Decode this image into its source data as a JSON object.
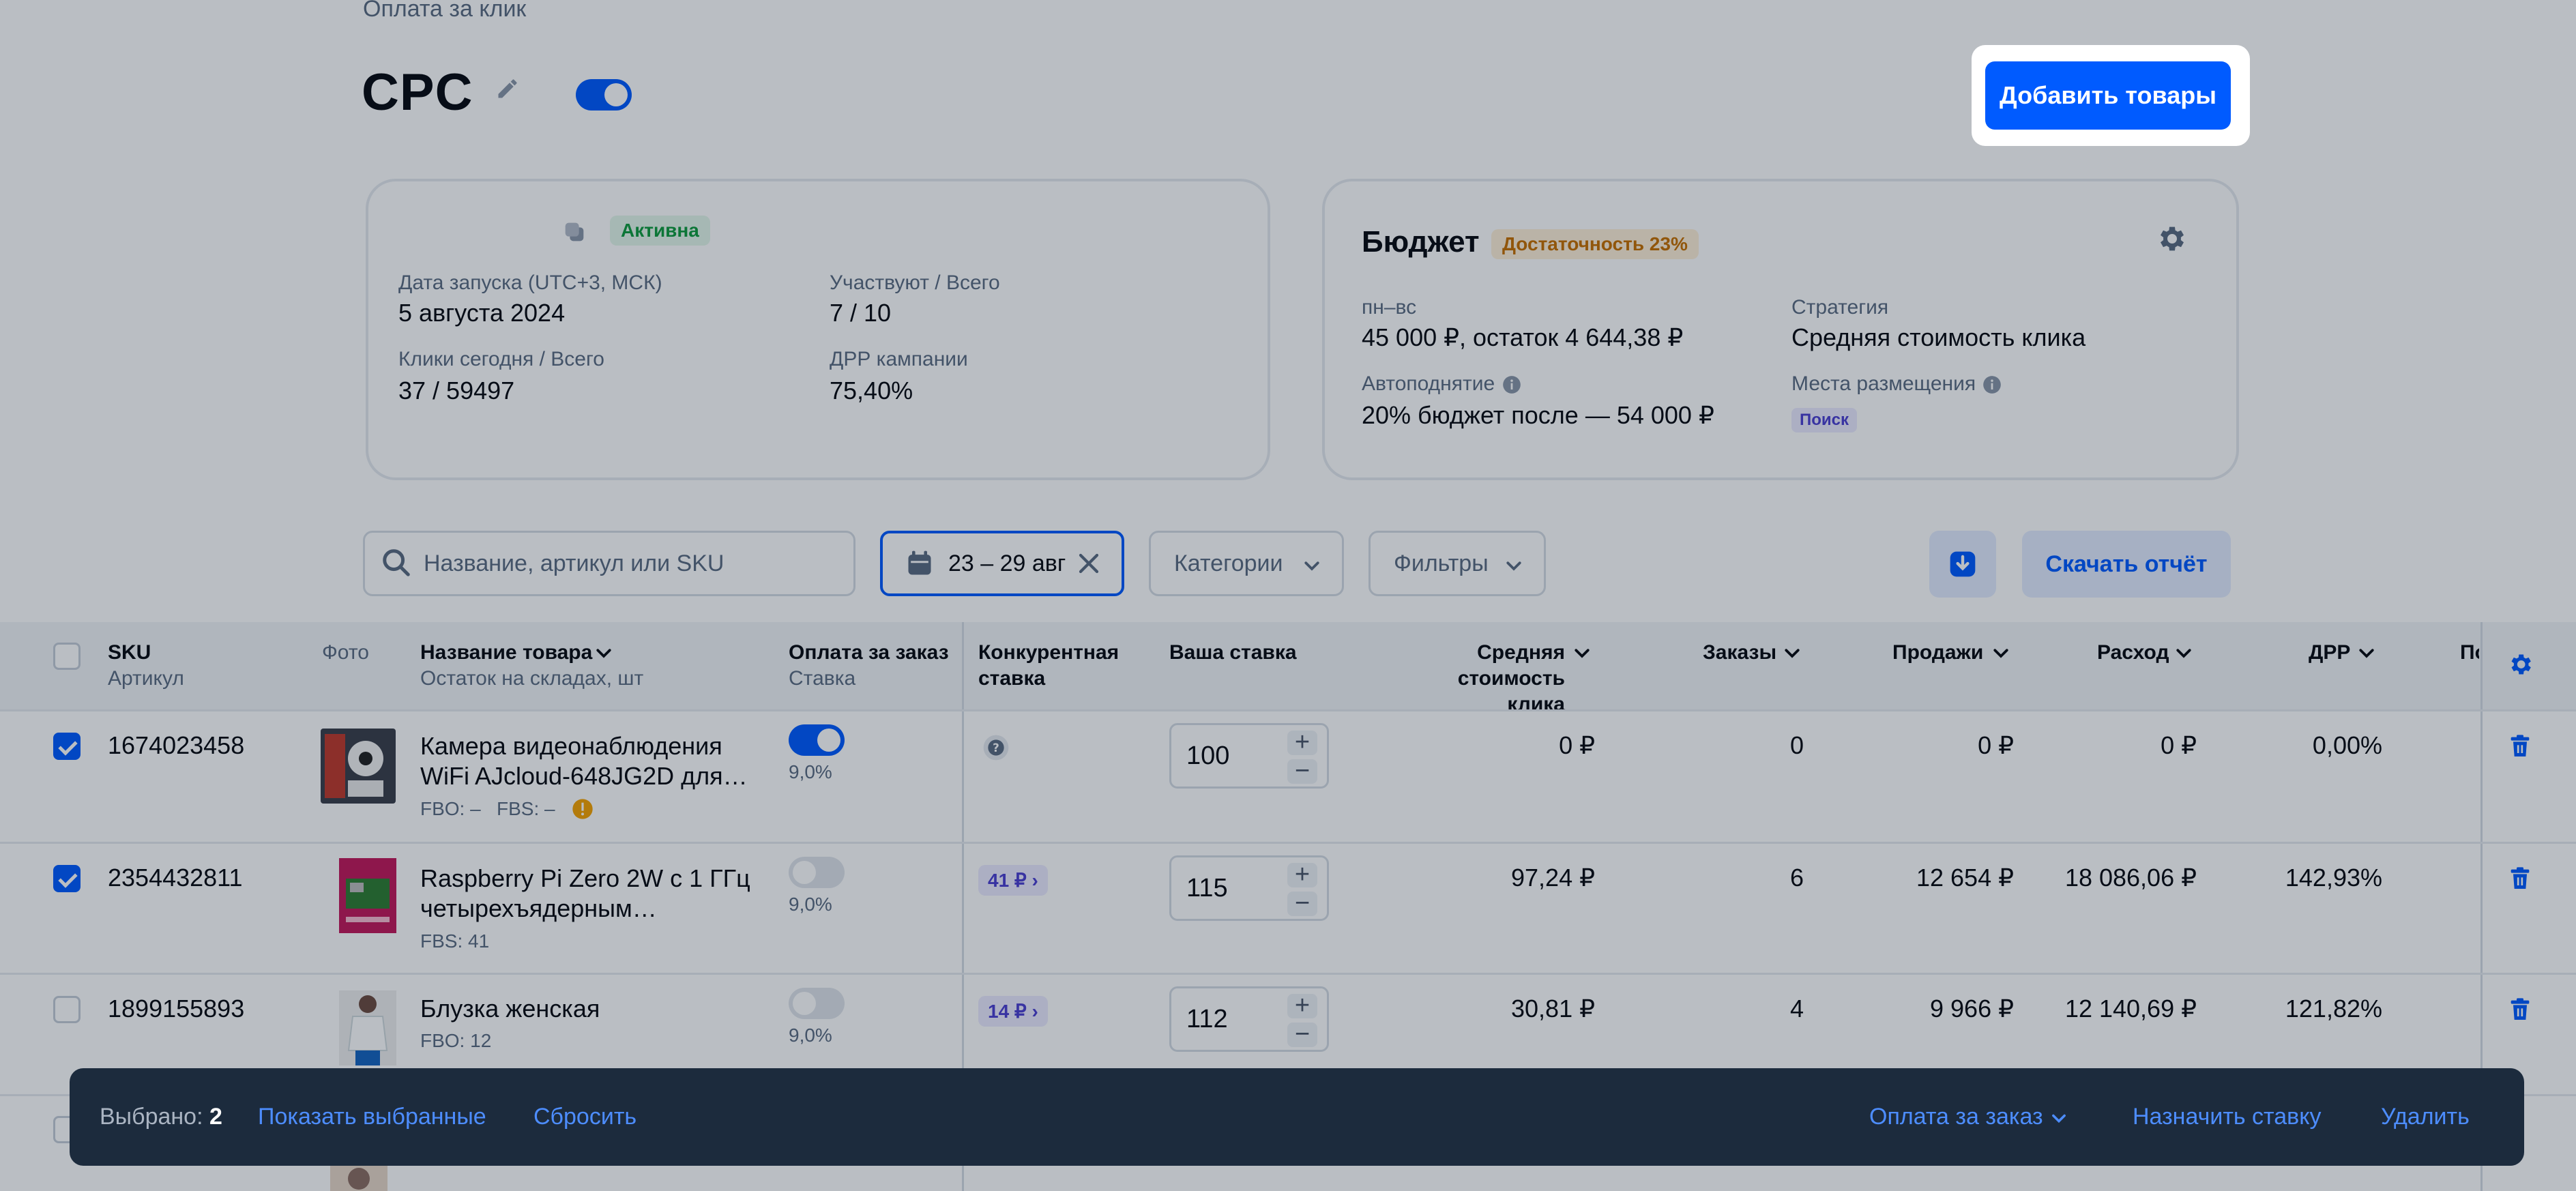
{
  "breadcrumb": "Оплата за клик",
  "page_title": "CPC",
  "header": {
    "add_products_label": "Добавить товары"
  },
  "campaign_card": {
    "status": "Активна",
    "launch_date_label": "Дата запуска (UTC+3, МСК)",
    "launch_date_value": "5 августа 2024",
    "participants_label": "Участвуют / Всего",
    "participants_value": "7 / 10",
    "clicks_label": "Клики сегодня / Всего",
    "clicks_value": "37 / 59497",
    "drr_label": "ДРР кампании",
    "drr_value": "75,40%"
  },
  "budget_card": {
    "title": "Бюджет",
    "sufficiency": "Достаточность 23%",
    "period_label": "пн–вс",
    "period_value": "45 000 ₽, остаток 4 644,38 ₽",
    "strategy_label": "Стратегия",
    "strategy_value": "Средняя стоимость клика",
    "autoraise_label": "Автоподнятие",
    "autoraise_value": "20% бюджет после — 54 000 ₽",
    "placements_label": "Места размещения",
    "placements_value": "Поиск"
  },
  "filters": {
    "search_placeholder": "Название, артикул или SKU",
    "date_range": "23 – 29 авг",
    "categories_label": "Категории",
    "filters_label": "Фильтры",
    "download_label": "Скачать отчёт"
  },
  "table": {
    "headers": {
      "sku": "SKU",
      "article": "Артикул",
      "photo": "Фото",
      "name": "Название товара",
      "stock": "Остаток на складах, шт",
      "pay_per_order": "Оплата за заказ",
      "rate": "Ставка",
      "competitive_1": "Конкурентная",
      "competitive_2": "ставка",
      "your_bid": "Ваша ставка",
      "avg_cpc_1": "Средняя стоимость",
      "avg_cpc_2": "клика",
      "orders": "Заказы",
      "sales": "Продажи",
      "expense": "Расход",
      "drr": "ДРР",
      "cut": "По"
    },
    "rows": [
      {
        "sku": "1674023458",
        "name_line1": "Камера видеонаблюдения",
        "name_line2": "WiFi AJcloud-648JG2D для…",
        "stock": "FBO: –   FBS: –",
        "rate": "9,0%",
        "competitive": "",
        "bid": "100",
        "avg_cpc": "0 ₽",
        "orders": "0",
        "sales": "0 ₽",
        "expense": "0 ₽",
        "drr": "0,00%"
      },
      {
        "sku": "2354432811",
        "name_line1": "Raspberry Pi Zero 2W с 1 ГГц",
        "name_line2": "четырехъядерным…",
        "stock": "FBS: 41",
        "rate": "9,0%",
        "competitive": "41 ₽",
        "bid": "115",
        "avg_cpc": "97,24 ₽",
        "orders": "6",
        "sales": "12 654 ₽",
        "expense": "18 086,06 ₽",
        "drr": "142,93%"
      },
      {
        "sku": "1899155893",
        "name_line1": "Блузка женская",
        "name_line2": "",
        "stock": "FBO: 12",
        "rate": "9,0%",
        "competitive": "14 ₽",
        "bid": "112",
        "avg_cpc": "30,81 ₽",
        "orders": "4",
        "sales": "9 966 ₽",
        "expense": "12 140,69 ₽",
        "drr": "121,82%"
      }
    ]
  },
  "bottom_bar": {
    "selected_label": "Выбрано:",
    "selected_count": "2",
    "show_selected": "Показать выбранные",
    "reset": "Сбросить",
    "pay_per_order": "Оплата за заказ",
    "assign_bid": "Назначить ставку",
    "delete": "Удалить"
  },
  "colors": {
    "accent": "#005bff",
    "overlay": "#071428",
    "bottom_bar": "#1c2b3d",
    "status_active": "#0e9b3e",
    "sufficiency": "#c66f00"
  }
}
